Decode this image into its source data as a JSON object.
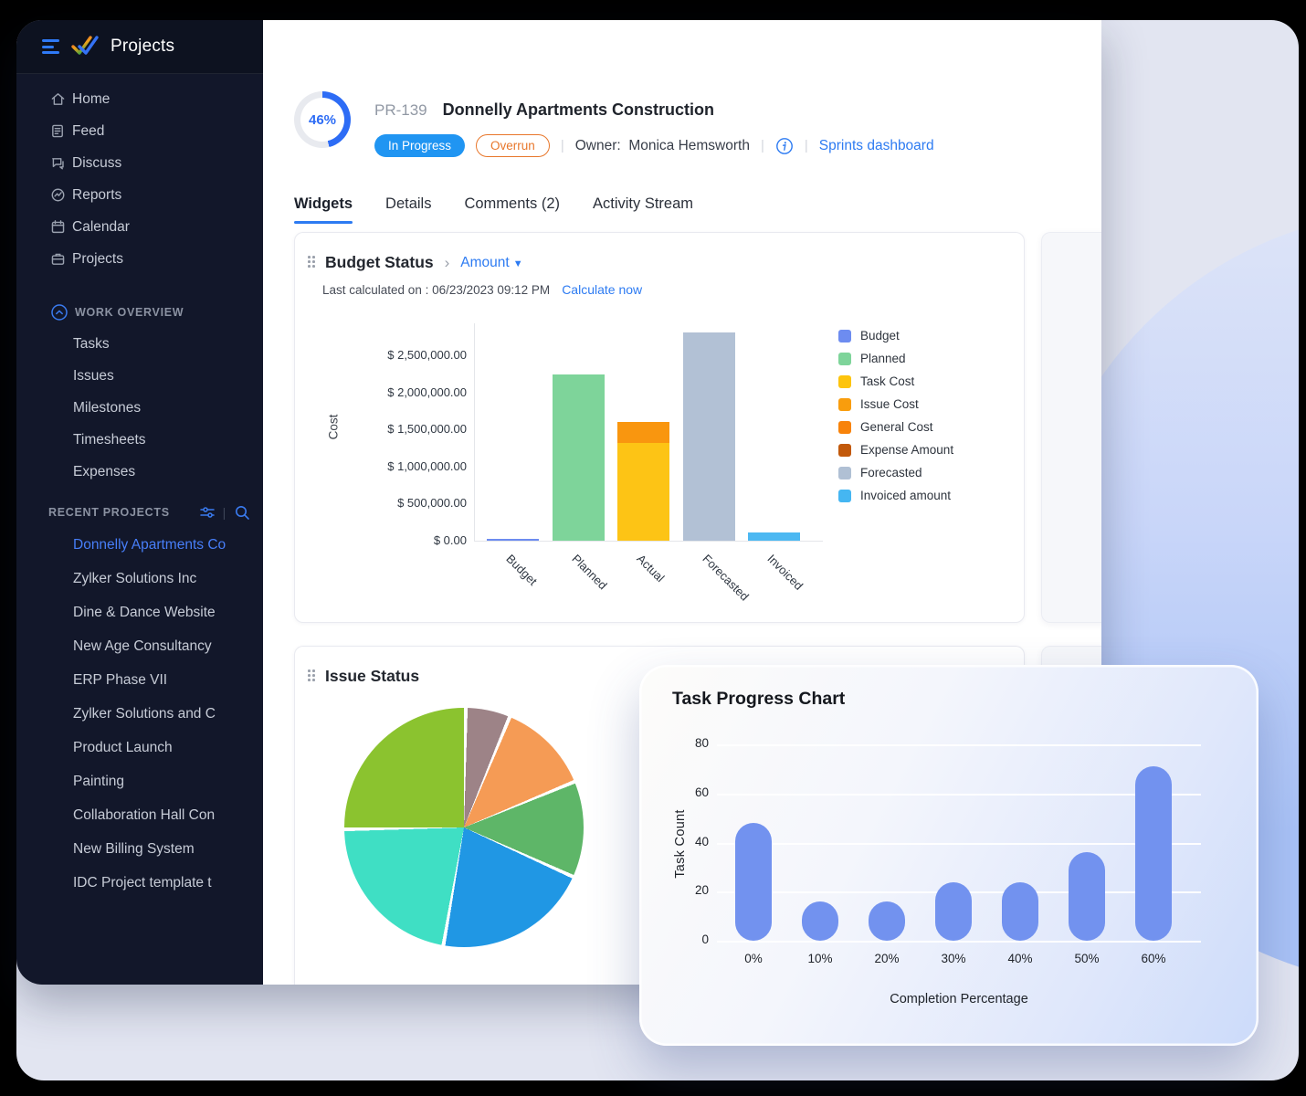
{
  "theme": {
    "accent_blue": "#2d7bf2",
    "status_blue": "#2095f2",
    "overrun_orange": "#e8772b",
    "sidebar_bg": "#12172a",
    "panel_lavender": "#e2e5f1",
    "task_bar_blue": "#7292ef"
  },
  "sidebar": {
    "app_title": "Projects",
    "nav": [
      {
        "icon": "home-icon",
        "label": "Home"
      },
      {
        "icon": "feed-icon",
        "label": "Feed"
      },
      {
        "icon": "discuss-icon",
        "label": "Discuss"
      },
      {
        "icon": "reports-icon",
        "label": "Reports"
      },
      {
        "icon": "calendar-icon",
        "label": "Calendar"
      },
      {
        "icon": "projects-icon",
        "label": "Projects"
      }
    ],
    "work_overview": {
      "label": "WORK OVERVIEW",
      "items": [
        "Tasks",
        "Issues",
        "Milestones",
        "Timesheets",
        "Expenses"
      ]
    },
    "recent_projects": {
      "label": "RECENT PROJECTS",
      "icons": [
        "filter-icon",
        "search-icon"
      ],
      "items": [
        {
          "label": "Donnelly Apartments Co",
          "active": true
        },
        {
          "label": "Zylker Solutions Inc",
          "active": false
        },
        {
          "label": "Dine & Dance Website",
          "active": false
        },
        {
          "label": "New Age Consultancy",
          "active": false
        },
        {
          "label": "ERP Phase VII",
          "active": false
        },
        {
          "label": "Zylker Solutions and C",
          "active": false
        },
        {
          "label": "Product Launch",
          "active": false
        },
        {
          "label": "Painting",
          "active": false
        },
        {
          "label": "Collaboration Hall Con",
          "active": false
        },
        {
          "label": "New Billing System",
          "active": false
        },
        {
          "label": "IDC Project template t",
          "active": false
        }
      ]
    }
  },
  "header": {
    "progress_percent": "46%",
    "project_id": "PR-139",
    "project_title": "Donnelly Apartments Construction",
    "status_badge": "In Progress",
    "overrun_badge": "Overrun",
    "owner_label": "Owner:",
    "owner_name": "Monica Hemsworth",
    "info_icon": "info-icon",
    "dashboard_link": "Sprints dashboard"
  },
  "tabs": [
    {
      "label": "Widgets",
      "active": true
    },
    {
      "label": "Details",
      "active": false
    },
    {
      "label": "Comments (2)",
      "active": false
    },
    {
      "label": "Activity Stream",
      "active": false
    }
  ],
  "budget_widget": {
    "title": "Budget Status",
    "dropdown_value": "Amount",
    "last_calculated": "Last calculated on : 06/23/2023 09:12 PM",
    "action_link": "Calculate now",
    "chart_data": {
      "type": "bar",
      "stacked": true,
      "ylabel": "Cost",
      "ymax": 2900000,
      "yticks": [
        {
          "label": "$ 0.00",
          "value": 0
        },
        {
          "label": "$ 500,000.00",
          "value": 500000
        },
        {
          "label": "$ 1,000,000.00",
          "value": 1000000
        },
        {
          "label": "$ 1,500,000.00",
          "value": 1500000
        },
        {
          "label": "$ 2,000,000.00",
          "value": 2000000
        },
        {
          "label": "$ 2,500,000.00",
          "value": 2500000
        }
      ],
      "categories": [
        "Budget",
        "Planned",
        "Actual",
        "Forecasted",
        "Invoiced"
      ],
      "bars": [
        {
          "category": "Budget",
          "segments": [
            {
              "name": "Budget",
              "value": 0,
              "color": "#6d8cf0"
            }
          ]
        },
        {
          "category": "Planned",
          "segments": [
            {
              "name": "Planned",
              "value": 2250000,
              "color": "#7ed49a"
            }
          ]
        },
        {
          "category": "Actual",
          "segments": [
            {
              "name": "Task Cost",
              "value": 1320000,
              "color": "#fdc415"
            },
            {
              "name": "Issue/General Cost",
              "value": 280000,
              "color": "#f9960f"
            }
          ]
        },
        {
          "category": "Forecasted",
          "segments": [
            {
              "name": "Forecasted",
              "value": 2810000,
              "color": "#b2c1d5"
            }
          ]
        },
        {
          "category": "Invoiced",
          "segments": [
            {
              "name": "Invoiced amount",
              "value": 110000,
              "color": "#4cb8f2"
            }
          ]
        }
      ],
      "legend": [
        {
          "label": "Budget",
          "color": "#6d8cf0"
        },
        {
          "label": "Planned",
          "color": "#7ed49a"
        },
        {
          "label": "Task Cost",
          "color": "#fdc40d"
        },
        {
          "label": "Issue Cost",
          "color": "#f99d0d"
        },
        {
          "label": "General Cost",
          "color": "#f8830a"
        },
        {
          "label": "Expense Amount",
          "color": "#c2590b"
        },
        {
          "label": "Forecasted",
          "color": "#b0c0d4"
        },
        {
          "label": "Invoiced amount",
          "color": "#45b6f2"
        }
      ]
    }
  },
  "issue_widget": {
    "title": "Issue Status",
    "chart_data": {
      "type": "pie",
      "slices": [
        {
          "color_name": "mauve",
          "color": "#9d8387",
          "percent": 6
        },
        {
          "color_name": "orange",
          "color": "#f59b55",
          "percent": 12.5
        },
        {
          "color_name": "green",
          "color": "#5eb668",
          "percent": 13
        },
        {
          "color_name": "blue",
          "color": "#2097e4",
          "percent": 21
        },
        {
          "color_name": "teal",
          "color": "#3fdfc4",
          "percent": 22
        },
        {
          "color_name": "yellow-green",
          "color": "#8bc32f",
          "percent": 25.5
        }
      ]
    }
  },
  "task_widget": {
    "chart_data": {
      "type": "bar",
      "title": "Task Progress Chart",
      "xlabel": "Completion Percentage",
      "ylabel": "Task Count",
      "categories": [
        "0%",
        "10%",
        "20%",
        "30%",
        "40%",
        "50%",
        "60%"
      ],
      "values": [
        48,
        16,
        16,
        24,
        24,
        36,
        71
      ],
      "yticks": [
        0,
        20,
        40,
        60,
        80
      ],
      "ylim": [
        0,
        80
      ],
      "bar_color": "#7292ef"
    }
  }
}
